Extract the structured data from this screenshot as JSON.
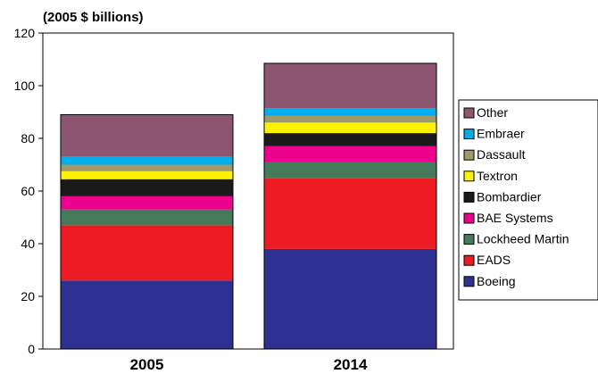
{
  "chart_data": {
    "type": "bar",
    "stacked": true,
    "title": "",
    "unit_label": "(2005 $ billions)",
    "xlabel": "",
    "ylabel": "",
    "ylim": [
      0,
      120
    ],
    "yticks": [
      0,
      20,
      40,
      60,
      80,
      100,
      120
    ],
    "categories": [
      "2005",
      "2014"
    ],
    "grid": false,
    "legend_position": "right",
    "series": [
      {
        "name": "Boeing",
        "color": "#2e3192",
        "values": [
          26,
          38
        ]
      },
      {
        "name": "EADS",
        "color": "#ed1c24",
        "values": [
          21,
          27
        ]
      },
      {
        "name": "Lockheed Martin",
        "color": "#457a5a",
        "values": [
          6,
          6
        ]
      },
      {
        "name": "BAE Systems",
        "color": "#ec008c",
        "values": [
          5,
          6
        ]
      },
      {
        "name": "Bombardier",
        "color": "#1a1a1a",
        "values": [
          6.5,
          5
        ]
      },
      {
        "name": "Textron",
        "color": "#fff200",
        "values": [
          3,
          4
        ]
      },
      {
        "name": "Dassault",
        "color": "#a09a6a",
        "values": [
          2.5,
          2.5
        ]
      },
      {
        "name": "Embraer",
        "color": "#00aeef",
        "values": [
          3,
          3
        ]
      },
      {
        "name": "Other",
        "color": "#8c5670",
        "values": [
          16,
          17
        ]
      }
    ]
  }
}
